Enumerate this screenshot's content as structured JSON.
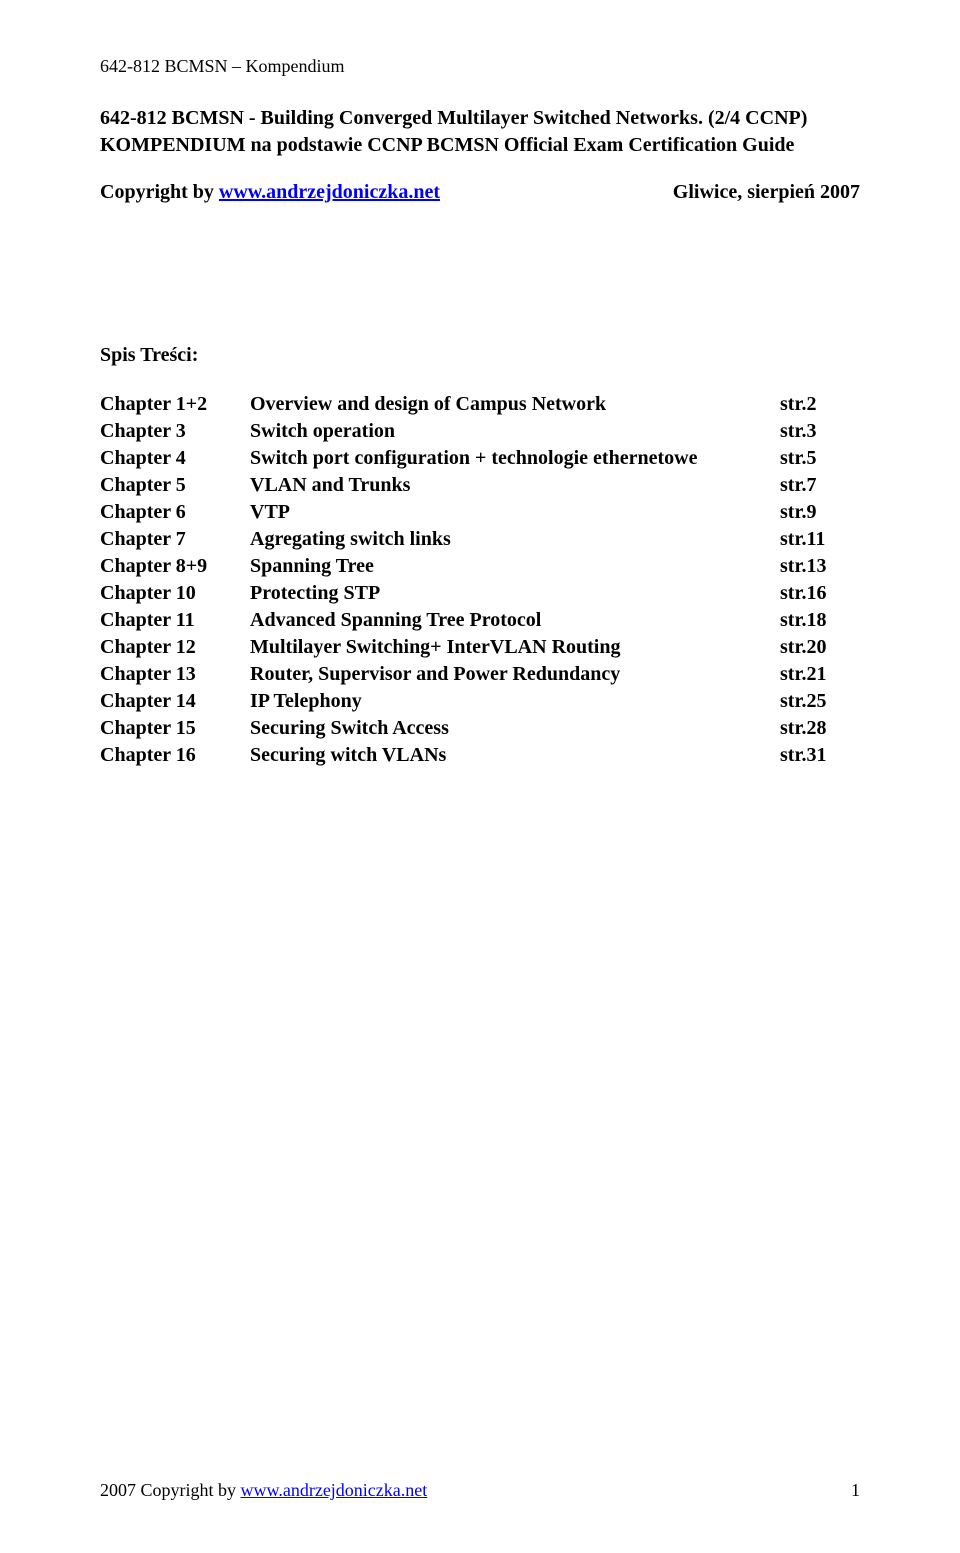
{
  "header": "642-812 BCMSN – Kompendium",
  "title_line1": "642-812 BCMSN - Building Converged Multilayer Switched Networks.  (2/4 CCNP)",
  "title_line2": "KOMPENDIUM  na podstawie CCNP BCMSN Official Exam Certification Guide",
  "copyright_prefix": "Copyright by ",
  "copyright_link": "www.andrzejdoniczka.net",
  "location_date": "Gliwice, sierpień 2007",
  "spis": "Spis Treści:",
  "toc": [
    {
      "chapter": "Chapter 1+2",
      "title": "Overview and design of Campus Network",
      "page": "str.2"
    },
    {
      "chapter": "Chapter 3",
      "title": "Switch operation",
      "page": "str.3"
    },
    {
      "chapter": "Chapter 4",
      "title": "Switch port configuration + technologie ethernetowe",
      "page": "str.5"
    },
    {
      "chapter": "Chapter 5",
      "title": "VLAN and Trunks",
      "page": "str.7"
    },
    {
      "chapter": "Chapter 6",
      "title": "VTP",
      "page": "str.9"
    },
    {
      "chapter": "Chapter 7",
      "title": "Agregating switch links",
      "page": "str.11"
    },
    {
      "chapter": "Chapter 8+9",
      "title": "Spanning Tree",
      "page": "str.13"
    },
    {
      "chapter": "Chapter 10",
      "title": "Protecting STP",
      "page": "str.16"
    },
    {
      "chapter": "Chapter 11",
      "title": "Advanced Spanning Tree Protocol",
      "page": "str.18"
    },
    {
      "chapter": "Chapter 12",
      "title": "Multilayer Switching+ InterVLAN Routing",
      "page": "str.20"
    },
    {
      "chapter": "Chapter 13",
      "title": "Router, Supervisor and Power Redundancy",
      "page": "str.21"
    },
    {
      "chapter": "Chapter 14",
      "title": "IP Telephony",
      "page": "str.25"
    },
    {
      "chapter": "Chapter 15",
      "title": "Securing Switch Access",
      "page": "str.28"
    },
    {
      "chapter": "Chapter 16",
      "title": "Securing witch VLANs",
      "page": "str.31"
    }
  ],
  "footer_prefix": "2007 Copyright by ",
  "footer_link": "www.andrzejdoniczka.net",
  "footer_page": "1"
}
